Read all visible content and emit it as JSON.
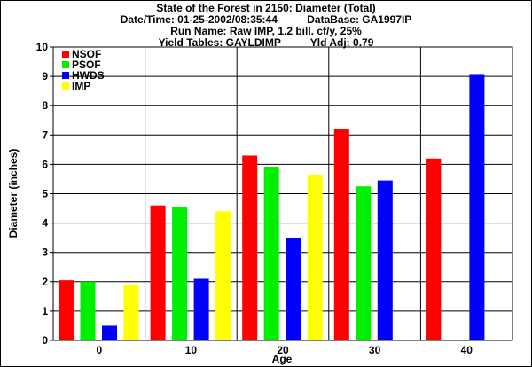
{
  "header": {
    "title": "State of the Forest in 2150: Diameter (Total)",
    "datetime_label": "Date/Time: 01-25-2002/08:35:44",
    "database_label": "DataBase: GA1997IP",
    "run_name": "Run Name: Raw IMP, 1.2 bill. cf/y, 25%",
    "yield_tables_label": "Yield Tables: GAYLDIMP",
    "yld_adj_label": "Yld Adj: 0.79"
  },
  "colors": {
    "NSOF": "#ff0000",
    "PSOF": "#00ee00",
    "HWDS": "#0000ff",
    "IMP": "#ffff00"
  },
  "chart_data": {
    "type": "bar",
    "xlabel": "Age",
    "ylabel": "Diameter (inches)",
    "ylim": [
      0,
      10
    ],
    "yticks": [
      0,
      1,
      2,
      3,
      4,
      5,
      6,
      7,
      8,
      9,
      10
    ],
    "categories": [
      "0",
      "10",
      "20",
      "30",
      "40"
    ],
    "legend_position": "top-left",
    "grid": true,
    "series": [
      {
        "name": "NSOF",
        "values": [
          2.05,
          4.6,
          6.3,
          7.2,
          6.2
        ]
      },
      {
        "name": "PSOF",
        "values": [
          2.0,
          4.55,
          5.92,
          5.25,
          null
        ]
      },
      {
        "name": "HWDS",
        "values": [
          0.5,
          2.1,
          3.5,
          5.45,
          9.05
        ]
      },
      {
        "name": "IMP",
        "values": [
          1.9,
          4.4,
          5.65,
          null,
          null
        ]
      }
    ]
  }
}
